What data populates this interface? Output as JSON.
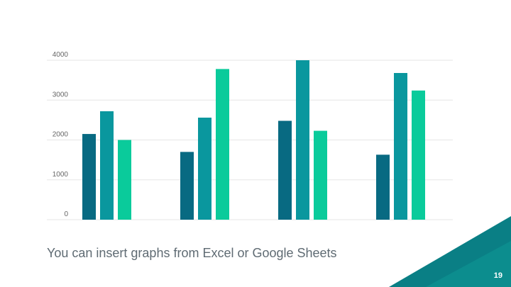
{
  "slide": {
    "caption": "You can insert graphs from Excel or Google Sheets",
    "page_number": "19"
  },
  "colors": {
    "series": [
      "#086a82",
      "#0a979e",
      "#0acb9b"
    ],
    "gridline": "#e6e6e6",
    "corner_dark": "#0a7f85",
    "corner_light": "#12a8a0"
  },
  "chart_data": {
    "type": "bar",
    "categories": [
      "",
      "",
      "",
      ""
    ],
    "series": [
      {
        "values": [
          2150,
          1700,
          2480,
          1630
        ]
      },
      {
        "values": [
          2720,
          2560,
          4000,
          3680
        ]
      },
      {
        "values": [
          2000,
          3780,
          2230,
          3240
        ]
      }
    ],
    "ylim": [
      0,
      4000
    ],
    "yticks": [
      "0",
      "1000",
      "2000",
      "3000",
      "4000"
    ],
    "grid": true,
    "legend": "none",
    "title": "",
    "xlabel": "",
    "ylabel": ""
  }
}
